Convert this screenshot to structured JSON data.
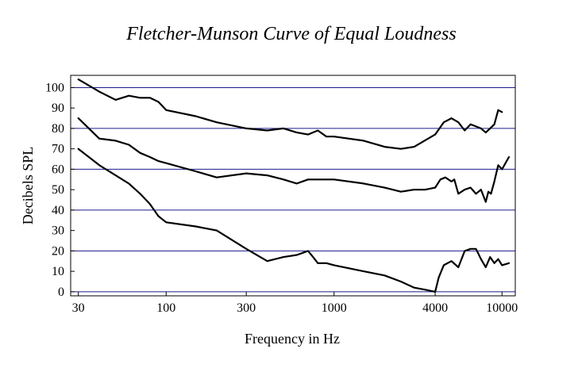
{
  "chart_data": {
    "type": "line",
    "title": "Fletcher-Munson Curve of Equal Loudness",
    "xlabel": "Frequency in Hz",
    "ylabel": "Decibels SPL",
    "xscale": "log",
    "xlim": [
      27,
      12000
    ],
    "ylim": [
      -2,
      106
    ],
    "x_ticks": [
      30,
      100,
      300,
      1000,
      4000,
      10000
    ],
    "x_tick_labels": [
      "30",
      "100",
      "300",
      "1000",
      "4000",
      "10000"
    ],
    "y_ticks": [
      0,
      10,
      20,
      30,
      40,
      50,
      60,
      70,
      80,
      90,
      100
    ],
    "y_tick_labels": [
      "0",
      "10",
      "20",
      "30",
      "40",
      "50",
      "60",
      "70",
      "80",
      "90",
      "100"
    ],
    "grid": "horizontal lines at 0, 20, 40, 60, 80, 100",
    "grid_color": "#1a1a8c",
    "line_color": "#000000",
    "series": [
      {
        "x": [
          30,
          40,
          50,
          60,
          70,
          80,
          90,
          100,
          150,
          200,
          300,
          400,
          500,
          600,
          700,
          800,
          900,
          1000,
          1500,
          2000,
          2500,
          3000,
          4000,
          4500,
          5000,
          5500,
          6000,
          6500,
          7000,
          7500,
          8000,
          8500,
          9000,
          9500,
          10000
        ],
        "y": [
          104,
          98,
          94,
          96,
          95,
          95,
          93,
          89,
          86,
          83,
          80,
          79,
          80,
          78,
          77,
          79,
          76,
          76,
          74,
          71,
          70,
          71,
          77,
          83,
          85,
          83,
          79,
          82,
          81,
          80,
          78,
          80,
          82,
          89,
          88
        ]
      },
      {
        "x": [
          30,
          40,
          50,
          60,
          70,
          80,
          90,
          100,
          150,
          200,
          300,
          400,
          500,
          600,
          700,
          800,
          900,
          1000,
          1500,
          2000,
          2500,
          3000,
          3500,
          4000,
          4300,
          4600,
          5000,
          5200,
          5500,
          6000,
          6500,
          7000,
          7500,
          8000,
          8300,
          8600,
          9000,
          9500,
          10000,
          11000
        ],
        "y": [
          85,
          75,
          74,
          72,
          68,
          66,
          64,
          63,
          59,
          56,
          58,
          57,
          55,
          53,
          55,
          55,
          55,
          55,
          53,
          51,
          49,
          50,
          50,
          51,
          55,
          56,
          54,
          55,
          48,
          50,
          51,
          48,
          50,
          44,
          49,
          48,
          54,
          62,
          60,
          66
        ]
      },
      {
        "x": [
          30,
          40,
          50,
          60,
          70,
          80,
          90,
          100,
          150,
          200,
          300,
          400,
          500,
          600,
          700,
          750,
          800,
          900,
          1000,
          1500,
          2000,
          2500,
          3000,
          3500,
          4000,
          4200,
          4500,
          5000,
          5500,
          6000,
          6500,
          7000,
          7500,
          8000,
          8500,
          9000,
          9500,
          10000,
          11000
        ],
        "y": [
          70,
          62,
          57,
          53,
          48,
          43,
          37,
          34,
          32,
          30,
          21,
          15,
          17,
          18,
          20,
          17,
          14,
          14,
          13,
          10,
          8,
          5,
          2,
          1,
          0,
          7,
          13,
          15,
          12,
          20,
          21,
          21,
          16,
          12,
          17,
          14,
          16,
          13,
          14
        ]
      }
    ]
  }
}
